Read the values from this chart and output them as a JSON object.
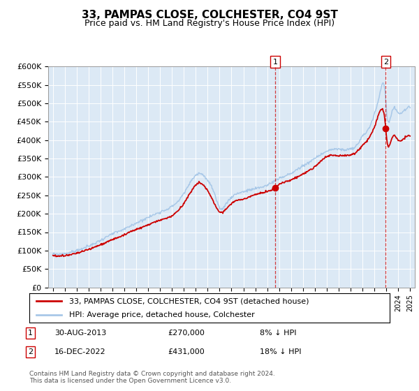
{
  "title": "33, PAMPAS CLOSE, COLCHESTER, CO4 9ST",
  "subtitle": "Price paid vs. HM Land Registry's House Price Index (HPI)",
  "legend_line1": "33, PAMPAS CLOSE, COLCHESTER, CO4 9ST (detached house)",
  "legend_line2": "HPI: Average price, detached house, Colchester",
  "annotation1_label": "1",
  "annotation1_date": "30-AUG-2013",
  "annotation1_price": "£270,000",
  "annotation1_hpi": "8% ↓ HPI",
  "annotation2_label": "2",
  "annotation2_date": "16-DEC-2022",
  "annotation2_price": "£431,000",
  "annotation2_hpi": "18% ↓ HPI",
  "footer": "Contains HM Land Registry data © Crown copyright and database right 2024.\nThis data is licensed under the Open Government Licence v3.0.",
  "hpi_color": "#a8c8e8",
  "price_color": "#cc0000",
  "vline_color": "#cc0000",
  "background_color": "#dce9f5",
  "ylim_min": 0,
  "ylim_max": 600000,
  "ytick_step": 50000,
  "start_year": 1995,
  "end_year": 2025,
  "sale1_year": 2013.67,
  "sale1_price": 270000,
  "sale2_year": 2022.96,
  "sale2_price": 431000
}
